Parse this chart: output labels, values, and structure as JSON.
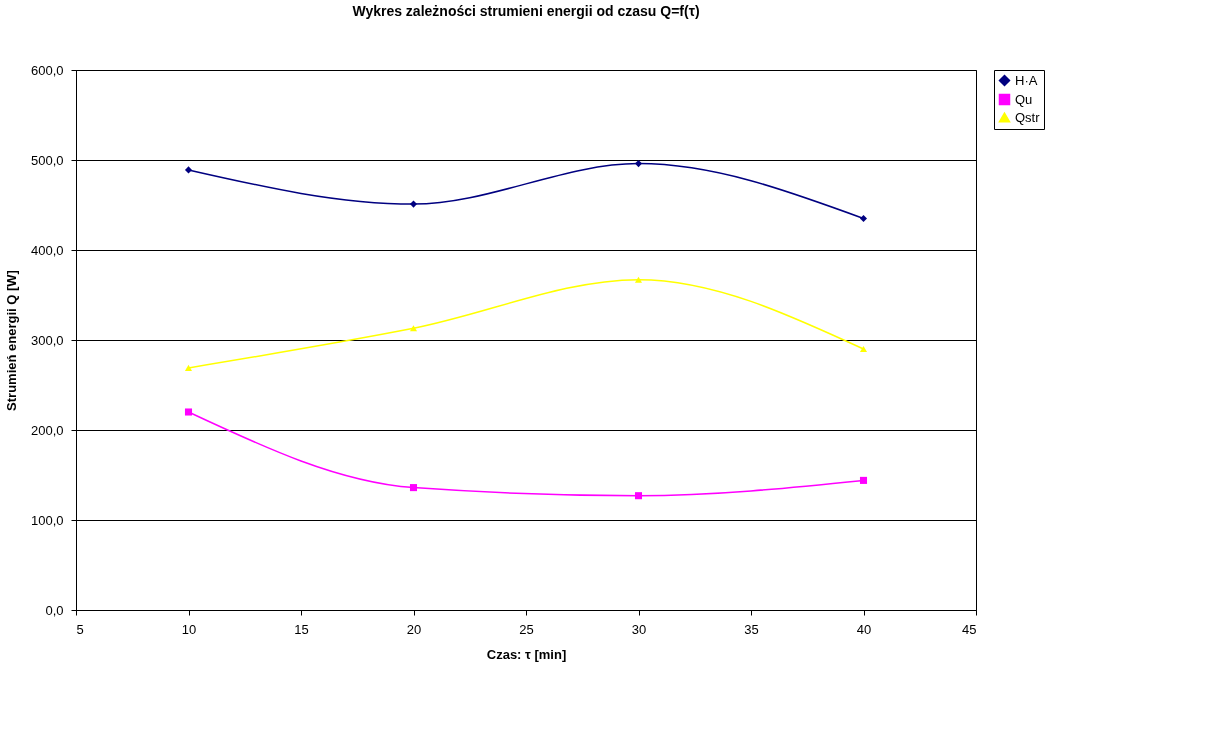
{
  "chart_data": {
    "type": "line",
    "title": "Wykres zależności strumieni energii od czasu Q=f(τ)",
    "xlabel": "Czas:   τ [min]",
    "ylabel": "Strumień energii   Q [W]",
    "x": [
      10,
      20,
      30,
      40
    ],
    "series": [
      {
        "name": "H·A",
        "color": "#000080",
        "marker": "diamond",
        "values": [
          489,
          451,
          496,
          435
        ]
      },
      {
        "name": "Qu",
        "color": "#ff00ff",
        "marker": "square",
        "values": [
          220,
          136,
          127,
          144
        ]
      },
      {
        "name": "Qstr",
        "color": "#ffff00",
        "marker": "triangle",
        "values": [
          269,
          313,
          367,
          290
        ]
      }
    ],
    "xlim": [
      5,
      45
    ],
    "xticks": [
      5,
      10,
      15,
      20,
      25,
      30,
      35,
      40,
      45
    ],
    "ylim": [
      0,
      600
    ],
    "yticks": [
      {
        "value": 0,
        "label": "0,0"
      },
      {
        "value": 100,
        "label": "100,0"
      },
      {
        "value": 200,
        "label": "200,0"
      },
      {
        "value": 300,
        "label": "300,0"
      },
      {
        "value": 400,
        "label": "400,0"
      },
      {
        "value": 500,
        "label": "500,0"
      },
      {
        "value": 600,
        "label": "600,0"
      }
    ],
    "grid": "y",
    "legend": "right",
    "line_style": "solid"
  }
}
